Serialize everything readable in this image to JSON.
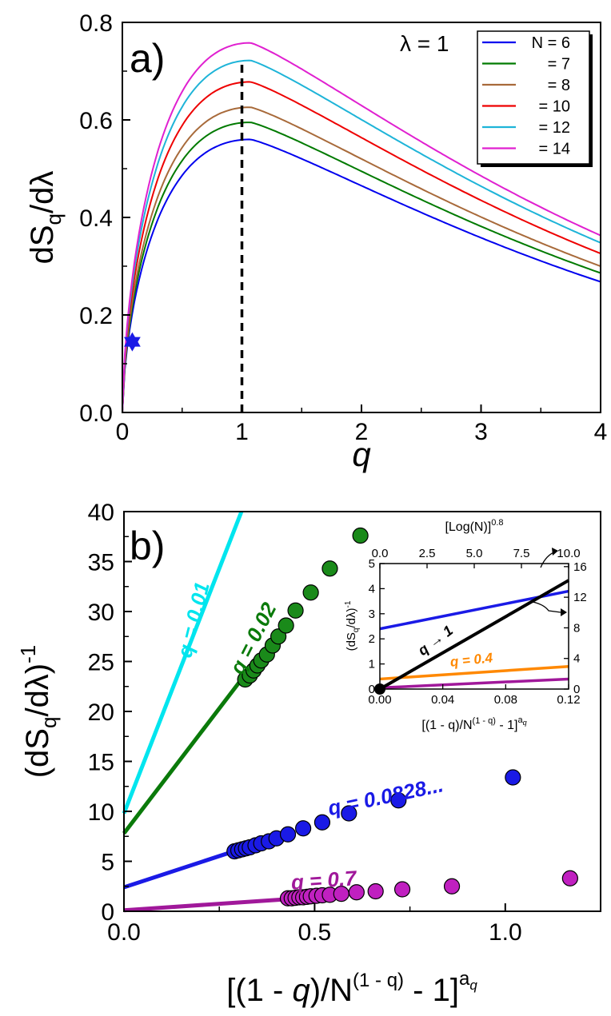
{
  "chart_data": [
    {
      "type": "line",
      "panel_label": "a)",
      "xlabel": "q",
      "ylabel_main": "dS",
      "ylabel_sub": "q",
      "ylabel_tail": "/dλ",
      "annotation": "λ = 1",
      "xlim": [
        0,
        4
      ],
      "ylim": [
        0,
        0.8
      ],
      "x_ticks": [
        "0",
        "1",
        "2",
        "3",
        "4"
      ],
      "y_ticks": [
        "0.0",
        "0.2",
        "0.4",
        "0.6",
        "0.8"
      ],
      "vline_x": 1,
      "marker": {
        "x": 0.0828,
        "y": 0.145
      },
      "legend_position": "top-right",
      "series": [
        {
          "name": "N = 6",
          "color": "#0000ee",
          "peak": 0.56
        },
        {
          "name": "= 7",
          "color": "#007a00",
          "peak": 0.595
        },
        {
          "name": "= 8",
          "color": "#a86a3a",
          "peak": 0.626
        },
        {
          "name": "= 10",
          "color": "#ee0000",
          "peak": 0.678
        },
        {
          "name": "= 12",
          "color": "#1eb4d8",
          "peak": 0.722
        },
        {
          "name": "= 14",
          "color": "#e020d0",
          "peak": 0.758
        }
      ],
      "tail_values_q4": [
        0.268,
        0.286,
        0.3,
        0.326,
        0.348,
        0.363
      ]
    },
    {
      "type": "scatter",
      "panel_label": "b)",
      "xlabel_pre": "[(1 - ",
      "xlabel_q": "q",
      "xlabel_mid": ")/N",
      "xlabel_sup": "(1 - q)",
      "xlabel_post": " - 1]",
      "xlabel_exp": "a",
      "xlabel_exp_sub": "q",
      "ylabel_main": "(dS",
      "ylabel_sub": "q",
      "ylabel_tail": "/dλ)",
      "ylabel_sup": "-1",
      "xlim": [
        0,
        1.25
      ],
      "ylim": [
        0,
        40
      ],
      "x_ticks": [
        "0.0",
        "0.5",
        "1.0"
      ],
      "y_ticks": [
        "0",
        "5",
        "10",
        "15",
        "20",
        "25",
        "30",
        "35",
        "40"
      ],
      "lines": [
        {
          "label": "q = 0.01",
          "color": "#00e5ee",
          "intercept": 9.8,
          "slope": 98.0,
          "x_end": 0.31
        },
        {
          "label": "q = 0.02",
          "color": "#0a7a0a",
          "intercept": 7.8,
          "slope": 50.0,
          "x_end": 0.31
        },
        {
          "label": "q = 0.0828...",
          "color": "#1a1ae6",
          "intercept": 2.4,
          "slope": 12.5,
          "x_end": 0.31
        },
        {
          "label": "q = 0.7",
          "color": "#a0189a",
          "intercept": 0.1,
          "slope": 2.6,
          "x_end": 0.44
        }
      ],
      "points": [
        {
          "series": "q = 0.02",
          "color": "#1a8a1a",
          "x": [
            0.318,
            0.33,
            0.34,
            0.35,
            0.36,
            0.375,
            0.39,
            0.405,
            0.425,
            0.45,
            0.49,
            0.54,
            0.62
          ],
          "y": [
            23.2,
            23.6,
            24.1,
            24.6,
            25.1,
            25.7,
            26.6,
            27.5,
            28.6,
            30.1,
            31.9,
            34.3,
            37.6
          ]
        },
        {
          "series": "q = 0.0828...",
          "color": "#1a1ae6",
          "x": [
            0.29,
            0.3,
            0.31,
            0.32,
            0.33,
            0.345,
            0.36,
            0.38,
            0.4,
            0.43,
            0.47,
            0.52,
            0.59,
            0.72,
            1.02
          ],
          "y": [
            6.0,
            6.1,
            6.2,
            6.3,
            6.4,
            6.6,
            6.8,
            7.0,
            7.3,
            7.7,
            8.3,
            8.9,
            9.8,
            11.1,
            13.4
          ]
        },
        {
          "series": "q = 0.7",
          "color": "#c020c0",
          "x": [
            0.43,
            0.44,
            0.45,
            0.46,
            0.47,
            0.48,
            0.49,
            0.505,
            0.52,
            0.54,
            0.57,
            0.61,
            0.66,
            0.73,
            0.86,
            1.17
          ],
          "y": [
            1.3,
            1.3,
            1.35,
            1.4,
            1.4,
            1.45,
            1.5,
            1.55,
            1.6,
            1.65,
            1.75,
            1.9,
            2.0,
            2.2,
            2.5,
            3.3
          ]
        }
      ],
      "inset": {
        "top_label": "[Log(N)]",
        "top_label_sup": "0.8",
        "xlabel_pre": "[(1 - q)/N",
        "xlabel_sup": "(1 - q)",
        "xlabel_post": " - 1]",
        "xlabel_exp": "a",
        "xlabel_exp_sub": "q",
        "ylabel_main": "(dS",
        "ylabel_sub": "q",
        "ylabel_tail": "/dλ)",
        "ylabel_sup": "-1",
        "x_ticks": [
          "0.00",
          "0.04",
          "0.08",
          "0.12"
        ],
        "x_top_ticks": [
          "0.0",
          "2.5",
          "5.0",
          "7.5",
          "10.0"
        ],
        "y_left_ticks": [
          "0",
          "1",
          "2",
          "3",
          "4",
          "5"
        ],
        "y_right_ticks": [
          "0",
          "4",
          "8",
          "12",
          "16"
        ],
        "xlim": [
          0,
          0.12
        ],
        "ylim_left": [
          0,
          5
        ],
        "ylim_right": [
          0,
          16.4
        ],
        "lines": [
          {
            "label": "",
            "color": "#1a1ae6",
            "y0": 2.4,
            "y1": 3.9
          },
          {
            "label": "q = 0.4",
            "color": "#ff8800",
            "y0": 0.4,
            "y1": 0.9
          },
          {
            "label": "",
            "color": "#a0189a",
            "y0": 0.05,
            "y1": 0.4
          },
          {
            "label": "q → 1",
            "color": "#000000",
            "y0": 0.0,
            "y1": 14.2,
            "axis": "right",
            "top_x_end": 10.0
          }
        ]
      }
    }
  ]
}
